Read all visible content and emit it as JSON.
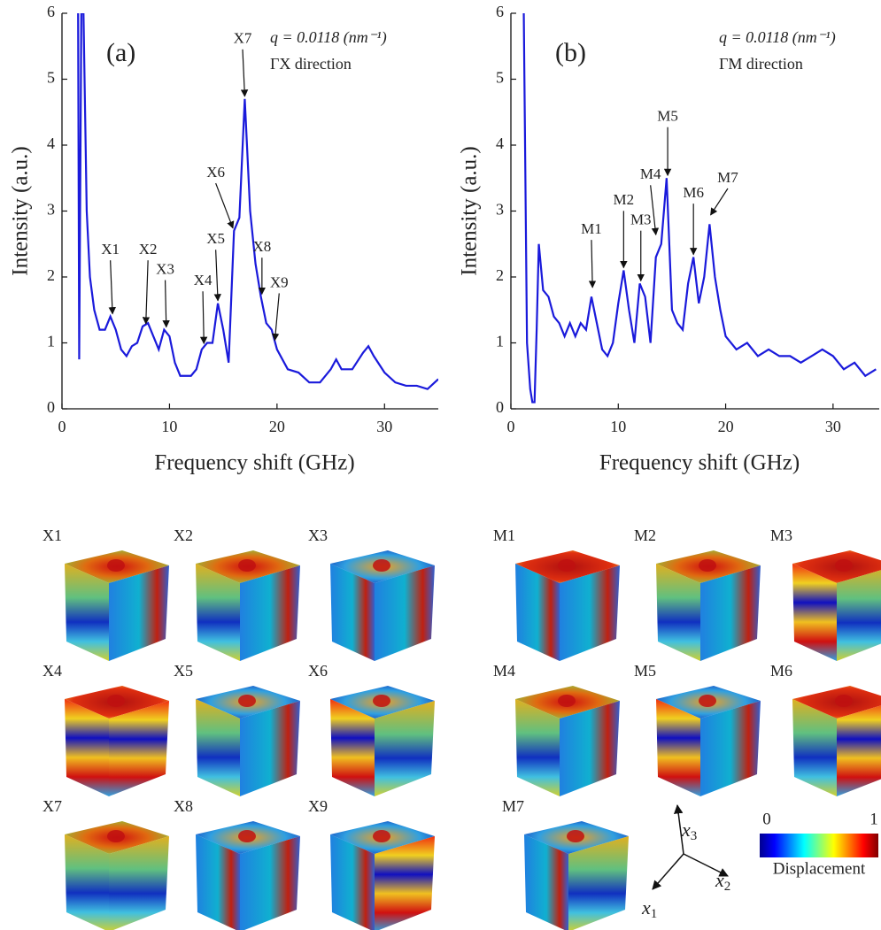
{
  "chart_data": [
    {
      "type": "line",
      "panel_label": "(a)",
      "note": "q = 0.0118 (nm⁻¹)",
      "direction": "ΓX direction",
      "xlabel": "Frequency shift (GHz)",
      "ylabel": "Intensity (a.u.)",
      "color": "#1a1adb",
      "xlim": [
        0,
        35
      ],
      "ylim": [
        0,
        6
      ],
      "xticks": [
        0,
        10,
        20,
        30
      ],
      "yticks": [
        0,
        1,
        2,
        3,
        4,
        5,
        6
      ],
      "x": [
        1.5,
        1.6,
        1.8,
        2.0,
        2.3,
        2.6,
        3.0,
        3.5,
        4.0,
        4.5,
        5.0,
        5.5,
        6.0,
        6.5,
        7.0,
        7.5,
        8.0,
        8.5,
        9.0,
        9.5,
        10.0,
        10.5,
        11,
        11.5,
        12,
        12.5,
        13,
        13.5,
        14,
        14.5,
        15,
        15.5,
        16,
        16.5,
        17,
        17.5,
        18,
        18.5,
        19,
        19.5,
        20,
        21,
        22,
        23,
        24,
        25,
        25.5,
        26,
        27,
        28,
        28.5,
        29,
        30,
        31,
        32,
        33,
        34,
        35
      ],
      "values": [
        6,
        0.75,
        6,
        6,
        3,
        2.0,
        1.5,
        1.2,
        1.2,
        1.4,
        1.2,
        0.9,
        0.8,
        0.95,
        1.0,
        1.25,
        1.3,
        1.1,
        0.9,
        1.2,
        1.1,
        0.7,
        0.5,
        0.5,
        0.5,
        0.6,
        0.9,
        1.0,
        1.0,
        1.6,
        1.2,
        0.7,
        2.7,
        2.9,
        4.7,
        3.0,
        2.2,
        1.7,
        1.3,
        1.2,
        0.9,
        0.6,
        0.55,
        0.4,
        0.4,
        0.6,
        0.75,
        0.6,
        0.6,
        0.85,
        0.95,
        0.8,
        0.55,
        0.4,
        0.35,
        0.35,
        0.3,
        0.45
      ],
      "annotations": [
        {
          "text": "X1",
          "x": 4.7,
          "y": 1.4,
          "text_x": 4.5,
          "text_y": 2.4
        },
        {
          "text": "X2",
          "x": 7.8,
          "y": 1.25,
          "text_x": 8.0,
          "text_y": 2.4
        },
        {
          "text": "X3",
          "x": 9.7,
          "y": 1.2,
          "text_x": 9.6,
          "text_y": 2.1
        },
        {
          "text": "X4",
          "x": 13.2,
          "y": 0.95,
          "text_x": 13.1,
          "text_y": 1.93
        },
        {
          "text": "X5",
          "x": 14.5,
          "y": 1.6,
          "text_x": 14.3,
          "text_y": 2.56
        },
        {
          "text": "X6",
          "x": 15.9,
          "y": 2.7,
          "text_x": 14.3,
          "text_y": 3.57
        },
        {
          "text": "X7",
          "x": 17.0,
          "y": 4.7,
          "text_x": 16.8,
          "text_y": 5.6
        },
        {
          "text": "X8",
          "x": 18.6,
          "y": 1.7,
          "text_x": 18.6,
          "text_y": 2.44
        },
        {
          "text": "X9",
          "x": 19.8,
          "y": 1.0,
          "text_x": 20.2,
          "text_y": 1.9
        }
      ]
    },
    {
      "type": "line",
      "panel_label": "(b)",
      "note": "q = 0.0118 (nm⁻¹)",
      "direction": "ΓM direction",
      "xlabel": "Frequency shift (GHz)",
      "ylabel": "Intensity (a.u.)",
      "color": "#1a1adb",
      "xlim": [
        0,
        34.3
      ],
      "ylim": [
        0,
        6
      ],
      "xticks": [
        0,
        10,
        20,
        30
      ],
      "yticks": [
        0,
        1,
        2,
        3,
        4,
        5,
        6
      ],
      "x": [
        1.2,
        1.5,
        1.8,
        2.0,
        2.2,
        2.4,
        2.6,
        3.0,
        3.5,
        4,
        4.5,
        5,
        5.5,
        6,
        6.5,
        7,
        7.5,
        8,
        8.5,
        9,
        9.5,
        10,
        10.5,
        11,
        11.5,
        12,
        12.5,
        13,
        13.5,
        14,
        14.5,
        15,
        15.5,
        16,
        16.5,
        17,
        17.5,
        18,
        18.5,
        19,
        19.5,
        20,
        21,
        22,
        23,
        24,
        25,
        26,
        27,
        28,
        29,
        30,
        31,
        32,
        33,
        34
      ],
      "values": [
        6,
        1.0,
        0.3,
        0.1,
        0.1,
        1.2,
        2.5,
        1.8,
        1.7,
        1.4,
        1.3,
        1.1,
        1.3,
        1.1,
        1.3,
        1.2,
        1.7,
        1.3,
        0.9,
        0.8,
        1.0,
        1.6,
        2.1,
        1.5,
        1.0,
        1.9,
        1.7,
        1.0,
        2.3,
        2.5,
        3.5,
        1.5,
        1.3,
        1.2,
        1.9,
        2.3,
        1.6,
        2.0,
        2.8,
        2.0,
        1.5,
        1.1,
        0.9,
        1.0,
        0.8,
        0.9,
        0.8,
        0.8,
        0.7,
        0.8,
        0.9,
        0.8,
        0.6,
        0.7,
        0.5,
        0.6
      ],
      "annotations": [
        {
          "text": "M1",
          "x": 7.6,
          "y": 1.8,
          "text_x": 7.5,
          "text_y": 2.71
        },
        {
          "text": "M2",
          "x": 10.5,
          "y": 2.1,
          "text_x": 10.5,
          "text_y": 3.15
        },
        {
          "text": "M3",
          "x": 12.1,
          "y": 1.9,
          "text_x": 12.1,
          "text_y": 2.85
        },
        {
          "text": "M4",
          "x": 13.5,
          "y": 2.6,
          "text_x": 13.0,
          "text_y": 3.54
        },
        {
          "text": "M5",
          "x": 14.6,
          "y": 3.5,
          "text_x": 14.6,
          "text_y": 4.42
        },
        {
          "text": "M6",
          "x": 17.0,
          "y": 2.3,
          "text_x": 17.0,
          "text_y": 3.26
        },
        {
          "text": "M7",
          "x": 18.6,
          "y": 2.9,
          "text_x": 20.2,
          "text_y": 3.49
        }
      ]
    }
  ],
  "mode_shapes": [
    "X1",
    "X2",
    "X3",
    "X4",
    "X5",
    "X6",
    "X7",
    "X8",
    "X9",
    "M1",
    "M2",
    "M3",
    "M4",
    "M5",
    "M6",
    "M7"
  ],
  "colorbar": {
    "min_label": "0",
    "max_label": "1",
    "title": "Displacement"
  },
  "axes_labels": [
    {
      "symbol": "x",
      "sub": "3"
    },
    {
      "symbol": "x",
      "sub": "2"
    },
    {
      "symbol": "x",
      "sub": "1"
    }
  ]
}
